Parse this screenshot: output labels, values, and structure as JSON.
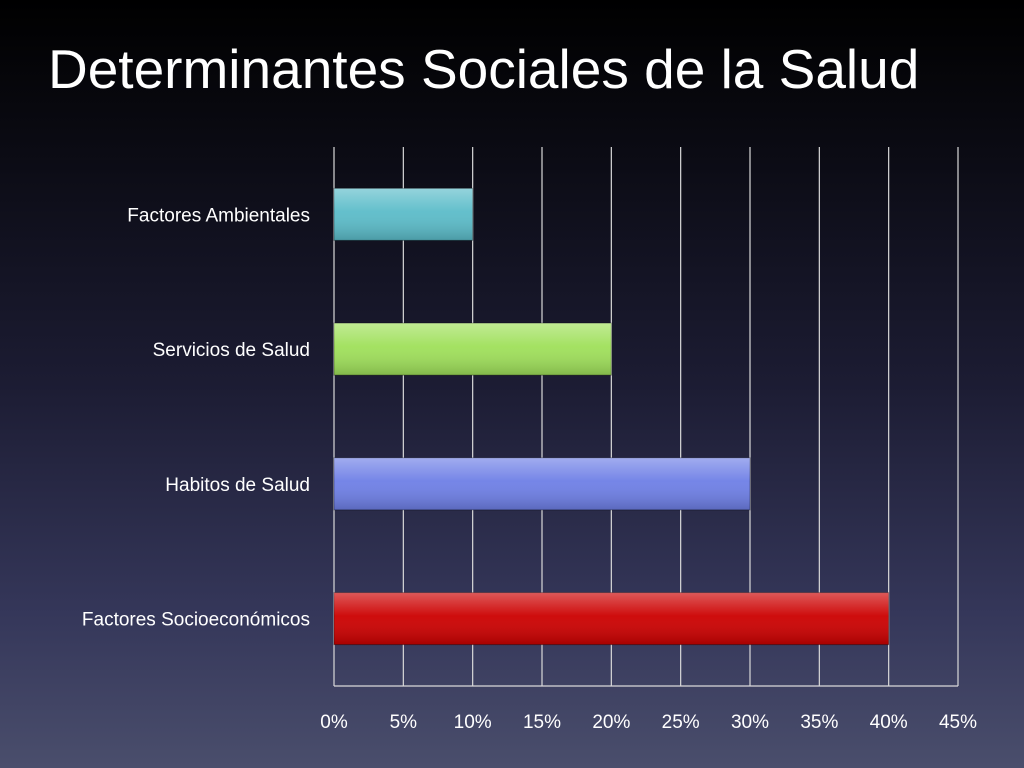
{
  "slide": {
    "title": "Determinantes Sociales de la Salud"
  },
  "chart_data": {
    "type": "bar",
    "orientation": "horizontal",
    "categories": [
      "Factores Ambientales",
      "Servicios de Salud",
      "Habitos de Salud",
      "Factores Socioeconómicos"
    ],
    "values": [
      10,
      20,
      30,
      40
    ],
    "value_unit": "%",
    "bar_colors": [
      "#5bbcc9",
      "#9fe05a",
      "#6e7fe6",
      "#cc0000"
    ],
    "xlim": [
      0,
      45
    ],
    "x_ticks": [
      "0%",
      "5%",
      "10%",
      "15%",
      "20%",
      "25%",
      "30%",
      "35%",
      "40%",
      "45%"
    ],
    "grid": "vertical",
    "legend": "none",
    "title": "",
    "xlabel": "",
    "ylabel": ""
  }
}
